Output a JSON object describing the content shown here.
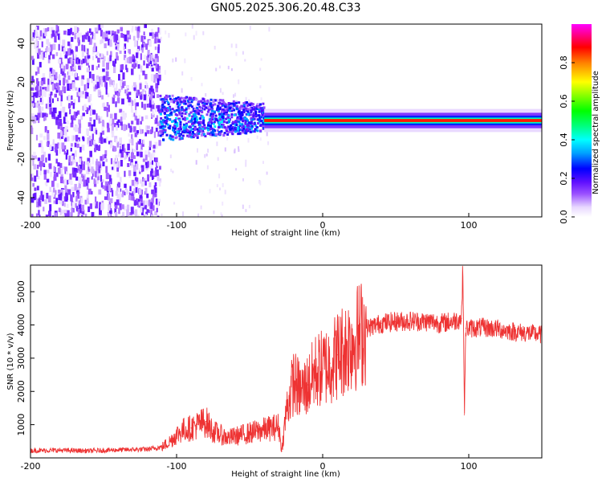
{
  "title": "GN05.2025.306.20.48.C33",
  "chart_data": [
    {
      "type": "heatmap",
      "title": "GN05.2025.306.20.48.C33",
      "xlabel": "Height of straight line (km)",
      "ylabel": "Frequency (Hz)",
      "xlim": [
        -200,
        150
      ],
      "ylim": [
        -50,
        50
      ],
      "xticks": [
        "-200",
        "-100",
        "0",
        "100"
      ],
      "xtick_values": [
        -200,
        -100,
        0,
        100
      ],
      "yticks": [
        "-40",
        "-20",
        "0",
        "20",
        "40"
      ],
      "ytick_values": [
        -40,
        -20,
        0,
        20,
        40
      ],
      "colorbar": {
        "label": "Normalized spectral amplitude",
        "range": [
          0,
          1
        ],
        "ticks": [
          "0.0",
          "0.2",
          "0.4",
          "0.6",
          "0.8"
        ],
        "tick_values": [
          0.0,
          0.2,
          0.4,
          0.6,
          0.8
        ],
        "colormap": [
          "#ffffff",
          "#e8d8ff",
          "#9a50ff",
          "#6010ff",
          "#0000ff",
          "#00a0ff",
          "#00ffff",
          "#00ff80",
          "#00ff00",
          "#ffff00",
          "#ff8000",
          "#ff0000",
          "#ff00ff"
        ]
      },
      "regions": [
        {
          "x_range": [
            -200,
            -112
          ],
          "freq_range": [
            -50,
            50
          ],
          "amplitude": 0.18,
          "description": "noise"
        },
        {
          "x_range": [
            -112,
            -40
          ],
          "freq_range": [
            -10,
            10
          ],
          "amplitude": 0.35
        },
        {
          "x_range": [
            -40,
            150
          ],
          "freq_center": 0,
          "freq_halfwidth": 3,
          "amplitude": 0.95
        }
      ]
    },
    {
      "type": "line",
      "xlabel": "Height of straight line (km)",
      "ylabel": "SNR (10 * v/v)",
      "xlim": [
        -200,
        150
      ],
      "ylim": [
        0,
        5800
      ],
      "xticks": [
        "-200",
        "-100",
        "0",
        "100"
      ],
      "xtick_values": [
        -200,
        -100,
        0,
        100
      ],
      "yticks": [
        "1000",
        "2000",
        "3000",
        "4000",
        "5000"
      ],
      "ytick_values": [
        1000,
        2000,
        3000,
        4000,
        5000
      ],
      "series": [
        {
          "name": "SNR",
          "color": "#ee3333",
          "x": [
            -200,
            -180,
            -160,
            -140,
            -120,
            -110,
            -105,
            -100,
            -95,
            -90,
            -85,
            -80,
            -75,
            -70,
            -65,
            -60,
            -55,
            -50,
            -45,
            -40,
            -35,
            -30,
            -28,
            -25,
            -20,
            -15,
            -10,
            -5,
            0,
            5,
            10,
            15,
            20,
            25,
            30,
            40,
            50,
            60,
            70,
            75,
            80,
            85,
            90,
            95,
            96,
            97,
            98,
            100,
            110,
            120,
            130,
            140,
            150
          ],
          "y": [
            220,
            230,
            210,
            240,
            260,
            330,
            480,
            700,
            850,
            900,
            1000,
            1100,
            800,
            700,
            600,
            650,
            700,
            750,
            800,
            850,
            900,
            950,
            200,
            1400,
            2300,
            2000,
            2200,
            2600,
            2700,
            2850,
            3100,
            3300,
            3500,
            3700,
            3900,
            4050,
            4100,
            4120,
            4100,
            4100,
            4050,
            4080,
            4120,
            4200,
            5800,
            1300,
            3900,
            3900,
            3920,
            3880,
            3800,
            3760,
            3700
          ]
        }
      ]
    }
  ]
}
